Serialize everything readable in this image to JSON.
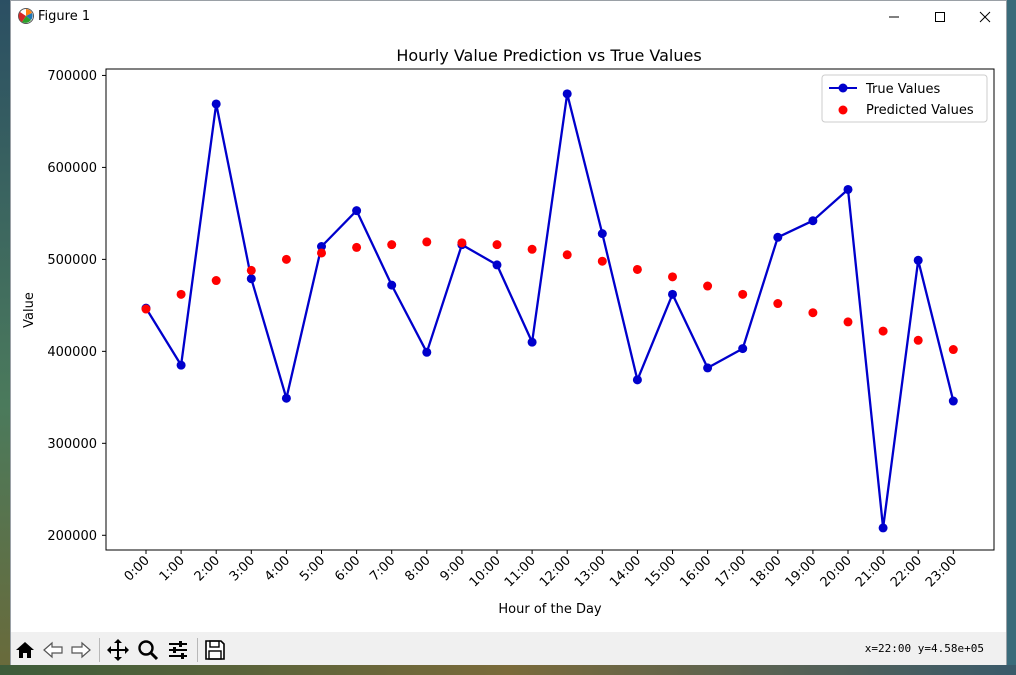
{
  "window": {
    "title": "Figure 1"
  },
  "toolbar": {
    "buttons": [
      "home-icon",
      "back-icon",
      "forward-icon",
      "pan-icon",
      "zoom-icon",
      "configure-icon",
      "save-icon"
    ],
    "coords": "x=22:00 y=4.58e+05"
  },
  "colors": {
    "true_line": "#0000cc",
    "predicted": "#ff0000"
  },
  "chart_data": {
    "type": "line",
    "title": "Hourly Value Prediction vs True Values",
    "xlabel": "Hour of the Day",
    "ylabel": "Value",
    "categories": [
      "0:00",
      "1:00",
      "2:00",
      "3:00",
      "4:00",
      "5:00",
      "6:00",
      "7:00",
      "8:00",
      "9:00",
      "10:00",
      "11:00",
      "12:00",
      "13:00",
      "14:00",
      "15:00",
      "16:00",
      "17:00",
      "18:00",
      "19:00",
      "20:00",
      "21:00",
      "22:00",
      "23:00"
    ],
    "series": [
      {
        "name": "True Values",
        "style": "line-marker",
        "values": [
          447000,
          385000,
          669000,
          479000,
          349000,
          514000,
          553000,
          472000,
          399000,
          516000,
          494000,
          410000,
          680000,
          528000,
          369000,
          462000,
          382000,
          403000,
          524000,
          542000,
          576000,
          208000,
          499000,
          346000
        ]
      },
      {
        "name": "Predicted Values",
        "style": "scatter",
        "values": [
          446000,
          462000,
          477000,
          488000,
          500000,
          507000,
          513000,
          516000,
          519000,
          518000,
          516000,
          511000,
          505000,
          498000,
          489000,
          481000,
          471000,
          462000,
          452000,
          442000,
          432000,
          422000,
          412000,
          402000
        ]
      }
    ],
    "yticks": [
      200000,
      300000,
      400000,
      500000,
      600000,
      700000
    ],
    "ylim": [
      184000,
      707000
    ],
    "grid": false,
    "legend_position": "top-right"
  }
}
